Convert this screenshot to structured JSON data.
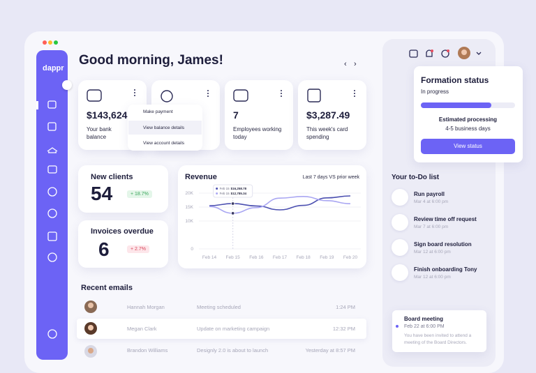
{
  "sidebar": {
    "logo": "dappr"
  },
  "header": {
    "greeting": "Good morning, James!"
  },
  "stat_cards": [
    {
      "value": "$143,624",
      "label": "Your bank balance"
    },
    {
      "value": "7",
      "label": "Employees working today"
    },
    {
      "value": "$3,287.49",
      "label": "This week's card spending"
    }
  ],
  "dropdown_menu": [
    "Make payment",
    "View balance details",
    "View account details"
  ],
  "metrics": [
    {
      "title": "New clients",
      "value": "54",
      "change": "+ 18.7%"
    },
    {
      "title": "Invoices overdue",
      "value": "6",
      "change": "+ 2.7%"
    }
  ],
  "revenue": {
    "title": "Revenue",
    "subtitle": "Last 7 days VS prior week",
    "x": [
      "Feb 14",
      "Feb 15",
      "Feb 16",
      "Feb 17",
      "Feb 18",
      "Feb 19",
      "Feb 20"
    ],
    "series": [
      {
        "color": "#4b4fb0",
        "values": [
          15500,
          16258.78,
          15400,
          14000,
          15600,
          18300,
          19000
        ]
      },
      {
        "color": "#a9a6f2",
        "values": [
          15200,
          12785.34,
          14800,
          18200,
          18800,
          17300,
          16200
        ]
      }
    ],
    "ylim": [
      0,
      20000
    ],
    "yticks": [
      {
        "value": 0,
        "label": "0"
      },
      {
        "value": 10000,
        "label": "10K"
      },
      {
        "value": 15000,
        "label": "15K"
      },
      {
        "value": 20000,
        "label": "20K"
      }
    ],
    "tooltip": {
      "date": "Feb 15",
      "values": [
        "$16,258.78",
        "$12,785.34"
      ]
    }
  },
  "recent_emails": {
    "title": "Recent emails",
    "rows": [
      {
        "name": "Hannah Morgan",
        "subject": "Meeting scheduled",
        "time": "1:24 PM"
      },
      {
        "name": "Megan Clark",
        "subject": "Update on marketing campaign",
        "time": "12:32 PM"
      },
      {
        "name": "Brandon Williams",
        "subject": "Designly 2.0 is about to launch",
        "time": "Yesterday at 8:57 PM"
      }
    ]
  },
  "formation_status": {
    "title": "Formation status",
    "status": "In progress",
    "progress": 75,
    "estimate_label": "Estimated processing",
    "estimate": "4-5 business days",
    "button": "View status"
  },
  "todo": {
    "title": "Your to-Do list",
    "items": [
      {
        "title": "Run payroll",
        "due": "Mar 4 at 6:00 pm"
      },
      {
        "title": "Review time off request",
        "due": "Mar 7 at 6:00 pm"
      },
      {
        "title": "Sign board resolution",
        "due": "Mar 12 at 6:00 pm"
      },
      {
        "title": "Finish onboarding Tony",
        "due": "Mar 12 at 6:00 pm"
      }
    ]
  },
  "event": {
    "title": "Board meeting",
    "time": "Feb 22 at 6:00 PM",
    "description": "You have been invited to attend a meeting of the Board Directors."
  }
}
